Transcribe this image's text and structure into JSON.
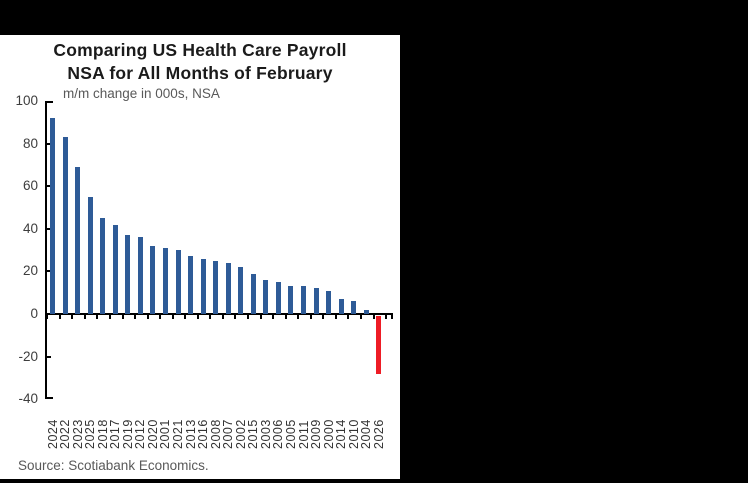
{
  "title": {
    "line1": "Comparing US Health Care Payroll",
    "line2": "NSA for All Months of February"
  },
  "subtitle": "m/m change in 000s, NSA",
  "source": "Source: Scotiabank Economics.",
  "colors": {
    "bar": "#2e5b97",
    "highlight": "#ee1c25",
    "axis": "#000000",
    "panel_bg": "#ffffff",
    "frame_bg": "#000000",
    "title_text": "#1b1b1b",
    "muted_text": "#595959"
  },
  "chart_data": {
    "type": "bar",
    "title": "Comparing US Health Care Payroll NSA for All Months of February",
    "note": "m/m change in 000s, NSA",
    "categories": [
      "2024",
      "2022",
      "2023",
      "2025",
      "2018",
      "2017",
      "2019",
      "2012",
      "2020",
      "2001",
      "2021",
      "2013",
      "2016",
      "2008",
      "2007",
      "2002",
      "2015",
      "2003",
      "2006",
      "2005",
      "2011",
      "2009",
      "2000",
      "2014",
      "2010",
      "2004",
      "2026"
    ],
    "values": [
      92,
      83,
      69,
      55,
      45,
      42,
      37,
      36,
      32,
      31,
      30,
      27,
      26,
      25,
      24,
      22,
      19,
      16,
      15,
      13,
      13,
      12,
      11,
      7,
      6,
      2,
      -27
    ],
    "highlight_categories": [
      "2026"
    ],
    "sorted": "descending by value",
    "xlabel": "",
    "ylabel": "",
    "ylim": [
      -40,
      100
    ],
    "yticks": [
      100,
      80,
      60,
      40,
      20,
      0,
      -20,
      -40
    ],
    "grid": false,
    "legend": "none",
    "x_tick_label_rotation_deg": 90
  }
}
